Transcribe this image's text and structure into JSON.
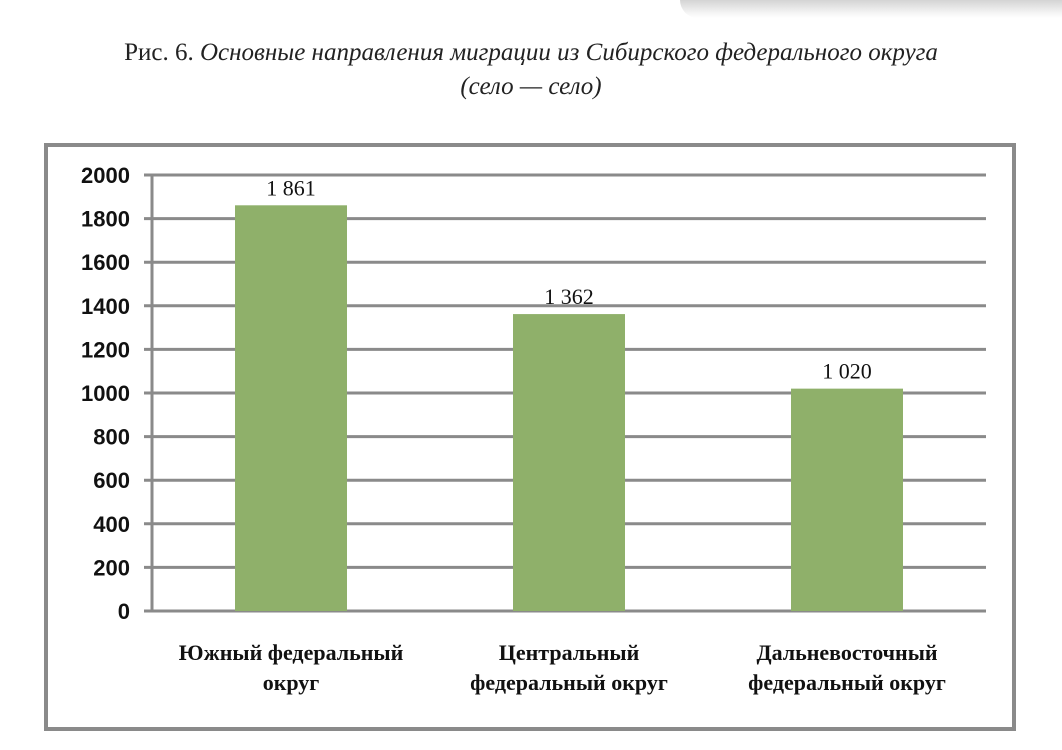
{
  "caption": {
    "prefix": "Рис. 6. ",
    "title_line1": "Основные направления миграции из Сибирского федерального округа",
    "title_line2": "(село — село)"
  },
  "chart_data": {
    "type": "bar",
    "title": "Основные направления миграции из Сибирского федерального округа (село — село)",
    "categories": [
      [
        "Южный федеральный",
        "округ"
      ],
      [
        "Центральный",
        "федеральный округ"
      ],
      [
        "Дальневосточный",
        "федеральный округ"
      ]
    ],
    "values": [
      1861,
      1362,
      1020
    ],
    "data_labels": [
      "1 861",
      "1 362",
      "1 020"
    ],
    "xlabel": "",
    "ylabel": "",
    "ylim": [
      0,
      2000
    ],
    "yticks": [
      0,
      200,
      400,
      600,
      800,
      1000,
      1200,
      1400,
      1600,
      1800,
      2000
    ],
    "grid": true,
    "legend": "none",
    "bar_color": "#8fb06a",
    "grid_color": "#8a8a8a"
  }
}
